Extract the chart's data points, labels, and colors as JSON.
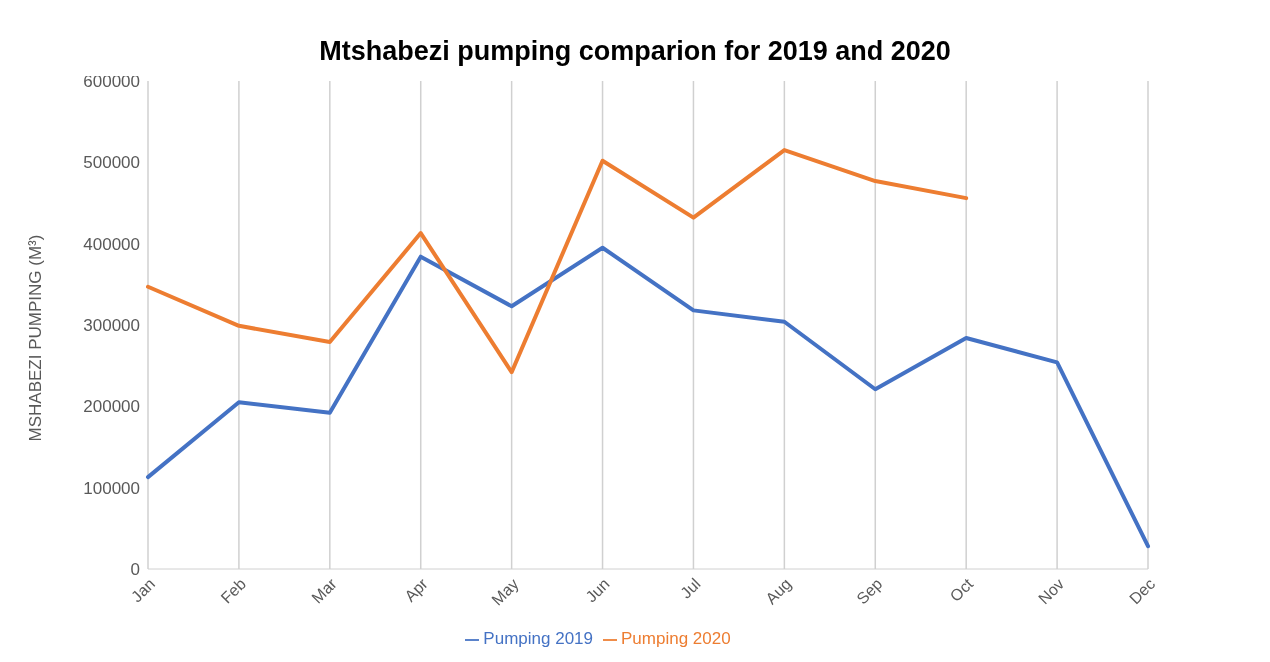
{
  "chart_data": {
    "type": "line",
    "title": "Mtshabezi pumping comparion for 2019 and 2020",
    "ylabel": "MSHABEZI PUMPING (M³)",
    "categories": [
      "Jan",
      "Feb",
      "Mar",
      "Apr",
      "May",
      "Jun",
      "Jul",
      "Aug",
      "Sep",
      "Oct",
      "Nov",
      "Dec"
    ],
    "series": [
      {
        "name": "Pumping 2019",
        "color": "#4472c4",
        "values": [
          113000,
          205000,
          192000,
          384000,
          323000,
          395000,
          318000,
          304000,
          221000,
          284000,
          254000,
          28000
        ]
      },
      {
        "name": "Pumping 2020",
        "color": "#ed7d31",
        "values": [
          347000,
          299000,
          279000,
          413000,
          242000,
          502000,
          432000,
          515000,
          477000,
          456000,
          null,
          null
        ]
      }
    ],
    "ylim": [
      0,
      600000
    ],
    "yticks": [
      0,
      100000,
      200000,
      300000,
      400000,
      500000,
      600000
    ],
    "grid": "x",
    "legend": "bottom",
    "marker": "none",
    "line_style": "solid"
  }
}
